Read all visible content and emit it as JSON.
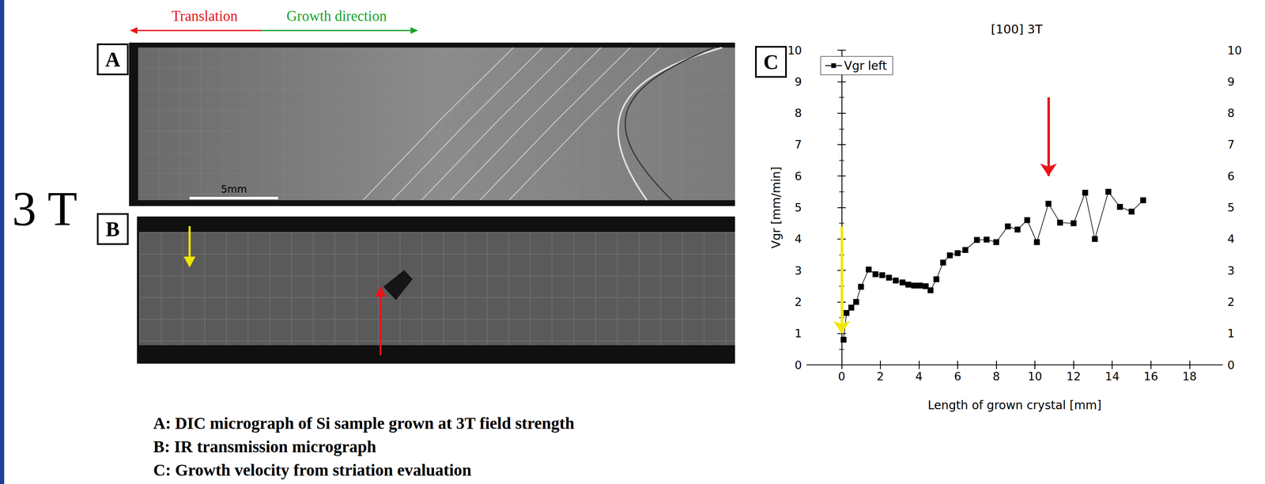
{
  "figure": {
    "side_label": "3 T",
    "direction_labels": {
      "left": "Translation",
      "right": "Growth direction"
    },
    "panels": [
      {
        "letter": "A",
        "scale_bar": "5mm"
      },
      {
        "letter": "B"
      },
      {
        "letter": "C"
      }
    ],
    "captions": [
      "A: DIC micrograph of Si sample grown at 3T field strength",
      "B: IR transmission micrograph",
      "C: Growth velocity from striation evaluation"
    ]
  },
  "chart_data": {
    "type": "line",
    "title": "[100] 3T",
    "x_label": "Length of grown crystal [mm]",
    "y_label": "Vgr [mm/min]",
    "x": [
      0.1,
      0.25,
      0.5,
      0.75,
      1.0,
      1.4,
      1.75,
      2.1,
      2.45,
      2.8,
      3.15,
      3.45,
      3.75,
      4.05,
      4.35,
      4.6,
      4.9,
      5.25,
      5.6,
      6.0,
      6.4,
      7.0,
      7.5,
      8.0,
      8.6,
      9.1,
      9.6,
      10.1,
      10.7,
      11.3,
      12.0,
      12.6,
      13.1,
      13.8,
      14.4,
      15.0,
      15.6
    ],
    "series": [
      {
        "name": "Vgr left",
        "color": "#000000",
        "marker": "square",
        "values": [
          0.8,
          1.65,
          1.82,
          2.0,
          2.48,
          3.03,
          2.88,
          2.85,
          2.77,
          2.68,
          2.62,
          2.55,
          2.52,
          2.52,
          2.5,
          2.37,
          2.72,
          3.25,
          3.48,
          3.55,
          3.65,
          3.97,
          3.98,
          3.9,
          4.4,
          4.3,
          4.6,
          3.9,
          5.12,
          4.52,
          4.5,
          5.47,
          4.0,
          5.5,
          5.02,
          4.87,
          5.23
        ]
      }
    ],
    "xlim": [
      -1.8,
      19.7
    ],
    "xticks": [
      0,
      2,
      4,
      6,
      8,
      10,
      12,
      14,
      16,
      18
    ],
    "ylim": [
      0,
      10
    ],
    "yticks": [
      0,
      1,
      2,
      3,
      4,
      5,
      6,
      7,
      8,
      9,
      10
    ],
    "y2lim": [
      0,
      10
    ],
    "y2ticks": [
      0,
      1,
      2,
      3,
      4,
      5,
      6,
      7,
      8,
      9,
      10
    ],
    "grid": false,
    "legend": "upper left",
    "annotations": [
      {
        "type": "arrow",
        "x": 0,
        "y": [
          4.4,
          1.0
        ],
        "color": "#f2e600"
      },
      {
        "type": "arrow",
        "x": 10.7,
        "y": [
          8.5,
          6.0
        ],
        "color": "#e8141c"
      }
    ]
  }
}
